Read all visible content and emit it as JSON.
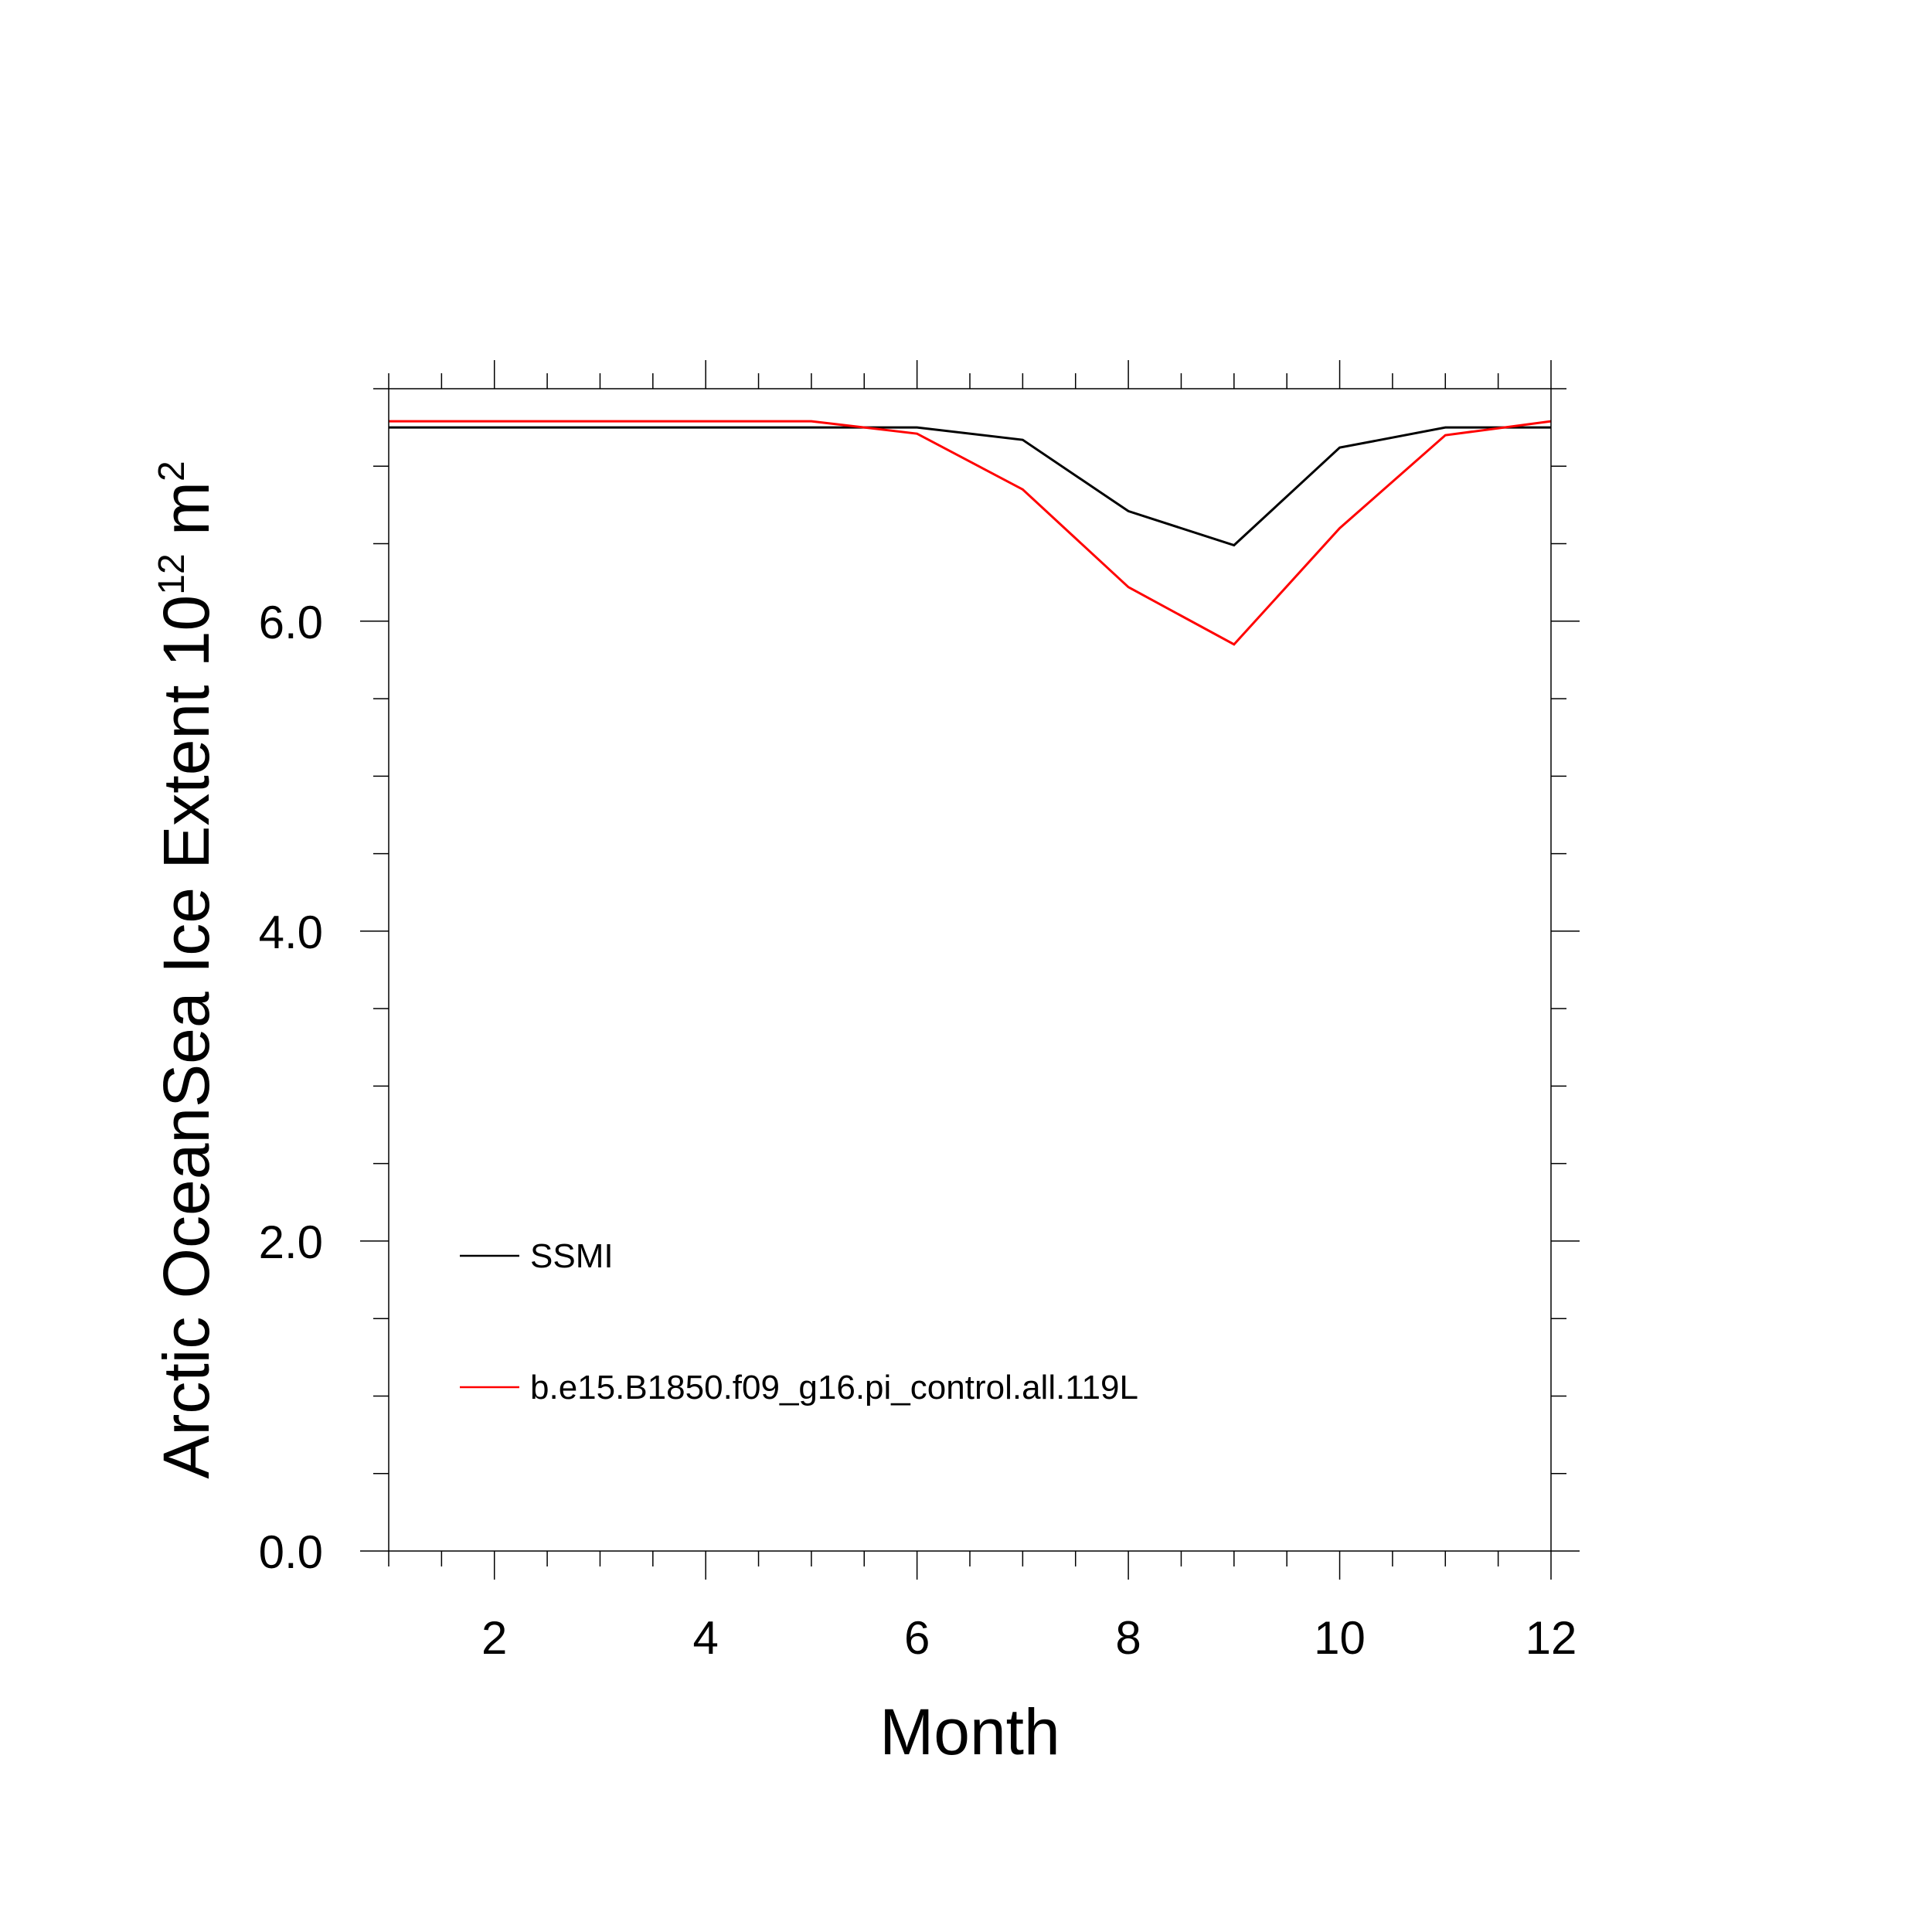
{
  "chart_data": {
    "type": "line",
    "title": "",
    "xlabel": "Month",
    "ylabel": "Arctic OceanSea Ice Extent 10",
    "ylabel_exp": "12",
    "ylabel_unit": " m",
    "ylabel_unit_exp": "2",
    "xlim": [
      1,
      12
    ],
    "ylim": [
      0,
      7.5
    ],
    "x_major_ticks": [
      2,
      4,
      6,
      8,
      10,
      12
    ],
    "x_minor_step": 0.5,
    "y_major_ticks": [
      0,
      2,
      4,
      6
    ],
    "y_tick_labels": [
      "0.0",
      "2.0",
      "4.0",
      "6.0"
    ],
    "y_minor_step": 0.5,
    "grid": false,
    "legend_position": "lower-left",
    "x": [
      1,
      2,
      3,
      4,
      5,
      6,
      7,
      8,
      9,
      10,
      11,
      12
    ],
    "series": [
      {
        "name": "SSMI",
        "color": "#000000",
        "values": [
          7.25,
          7.25,
          7.25,
          7.25,
          7.25,
          7.25,
          7.17,
          6.71,
          6.49,
          7.12,
          7.25,
          7.25
        ]
      },
      {
        "name": "b.e15.B1850.f09_g16.pi_control.all.119L",
        "color": "#ff0000",
        "values": [
          7.29,
          7.29,
          7.29,
          7.29,
          7.29,
          7.21,
          6.85,
          6.22,
          5.85,
          6.6,
          7.2,
          7.29
        ]
      }
    ]
  }
}
